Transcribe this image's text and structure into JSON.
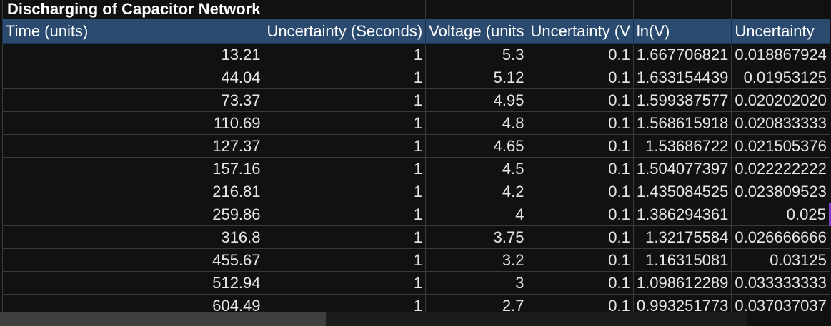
{
  "sheet": {
    "title": "Discharging of Capacitor Network",
    "headers": [
      "Time (units)",
      "Uncertainty (Seconds)",
      "Voltage (units",
      "Uncertainty (V",
      "ln(V)",
      "Uncertainty"
    ],
    "rows": [
      [
        "13.21",
        "1",
        "5.3",
        "0.1",
        "1.667706821",
        "0.018867924"
      ],
      [
        "44.04",
        "1",
        "5.12",
        "0.1",
        "1.633154439",
        "0.01953125"
      ],
      [
        "73.37",
        "1",
        "4.95",
        "0.1",
        "1.599387577",
        "0.020202020"
      ],
      [
        "110.69",
        "1",
        "4.8",
        "0.1",
        "1.568615918",
        "0.020833333"
      ],
      [
        "127.37",
        "1",
        "4.65",
        "0.1",
        "1.53686722",
        "0.021505376"
      ],
      [
        "157.16",
        "1",
        "4.5",
        "0.1",
        "1.504077397",
        "0.022222222"
      ],
      [
        "216.81",
        "1",
        "4.2",
        "0.1",
        "1.435084525",
        "0.023809523"
      ],
      [
        "259.86",
        "1",
        "4",
        "0.1",
        "1.386294361",
        "0.025"
      ],
      [
        "316.8",
        "1",
        "3.75",
        "0.1",
        "1.32175584",
        "0.026666666"
      ],
      [
        "455.67",
        "1",
        "3.2",
        "0.1",
        "1.16315081",
        "0.03125"
      ],
      [
        "512.94",
        "1",
        "3",
        "0.1",
        "1.098612289",
        "0.033333333"
      ],
      [
        "604.49",
        "1",
        "2.7",
        "0.1",
        "0.993251773",
        "0.037037037"
      ]
    ]
  },
  "colors": {
    "header_bg": "#2b4a6f",
    "grid": "#3a3a3a",
    "selection_accent": "#7a3cc9"
  }
}
